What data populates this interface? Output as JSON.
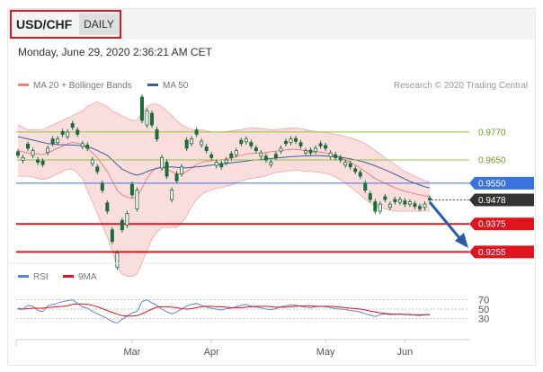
{
  "header": {
    "pair": "USD/CHF",
    "period": "DAILY"
  },
  "timestamp": "Monday, June 29, 2020 2:36:21 AM CET",
  "legend": {
    "bollinger": {
      "label": "MA 20 + Bollinger Bands",
      "color": "#f08080"
    },
    "ma50": {
      "label": "MA 50",
      "color": "#3a5da0"
    }
  },
  "copyright": "Research © 2020 Trading Central",
  "rsi_legend": {
    "rsi": {
      "label": "RSI",
      "color": "#5b86d6"
    },
    "ma9": {
      "label": "9MA",
      "color": "#e0141e"
    }
  },
  "colors": {
    "candle": "#1f6b3a",
    "resistance": "#8cc63f",
    "support": "#e0141e",
    "pivot": "#3a72e0",
    "current": "#333333",
    "forecast_arrow": "#2a5ca8"
  },
  "chart_data": {
    "type": "candlestick",
    "title": "USD/CHF DAILY",
    "x_tick_labels": [
      "Mar",
      "Apr",
      "May",
      "Jun"
    ],
    "price_range": [
      0.921,
      0.992
    ],
    "levels": [
      {
        "value": 0.977,
        "label": "0.9770",
        "kind": "resistance"
      },
      {
        "value": 0.965,
        "label": "0.9650",
        "kind": "resistance"
      },
      {
        "value": 0.955,
        "label": "0.9550",
        "kind": "pivot"
      },
      {
        "value": 0.9478,
        "label": "0.9478",
        "kind": "current"
      },
      {
        "value": 0.9375,
        "label": "0.9375",
        "kind": "support"
      },
      {
        "value": 0.9255,
        "label": "0.9255",
        "kind": "support"
      }
    ],
    "close": [
      0.967,
      0.966,
      0.97,
      0.969,
      0.964,
      0.963,
      0.97,
      0.972,
      0.974,
      0.976,
      0.977,
      0.979,
      0.976,
      0.972,
      0.97,
      0.965,
      0.96,
      0.952,
      0.943,
      0.93,
      0.925,
      0.935,
      0.942,
      0.95,
      0.952,
      0.982,
      0.986,
      0.98,
      0.974,
      0.966,
      0.958,
      0.952,
      0.956,
      0.962,
      0.97,
      0.974,
      0.976,
      0.973,
      0.969,
      0.966,
      0.964,
      0.962,
      0.965,
      0.966,
      0.969,
      0.972,
      0.974,
      0.971,
      0.969,
      0.968,
      0.965,
      0.964,
      0.966,
      0.97,
      0.972,
      0.974,
      0.973,
      0.971,
      0.969,
      0.968,
      0.97,
      0.971,
      0.97,
      0.968,
      0.966,
      0.965,
      0.964,
      0.962,
      0.96,
      0.958,
      0.952,
      0.948,
      0.943,
      0.946,
      0.948,
      0.946,
      0.947,
      0.948,
      0.946,
      0.947,
      0.945,
      0.944,
      0.946,
      0.9478
    ],
    "open_offsets": [
      0.0015,
      -0.0012,
      0.0018,
      -0.002,
      0.001,
      0.0015,
      -0.0018,
      0.002,
      -0.0015,
      0.0012,
      -0.002,
      0.0016,
      0.0018,
      -0.0012,
      0.0014,
      -0.0016,
      0.002,
      0.003,
      0.0035,
      0.005,
      -0.006,
      0.004,
      -0.005,
      0.0045,
      -0.008,
      0.01,
      -0.006,
      0.005,
      0.004,
      -0.0045,
      0.006,
      -0.004,
      0.003,
      -0.003,
      0.0035,
      -0.002,
      0.0018,
      -0.0015,
      0.0016,
      0.0012,
      -0.0014,
      0.0015,
      -0.0012,
      0.0016,
      -0.0018,
      0.0014,
      -0.0012,
      0.0015,
      0.0012,
      -0.0014,
      0.0016,
      -0.001,
      0.0014,
      -0.0012,
      0.001,
      -0.0015,
      0.0012,
      0.0014,
      -0.001,
      0.0012,
      -0.0014,
      0.001,
      0.0012,
      -0.0016,
      0.0012,
      0.001,
      -0.0012,
      0.0014,
      0.0012,
      0.0016,
      0.003,
      0.0025,
      0.004,
      -0.003,
      0.0012,
      -0.0014,
      0.001,
      -0.0012,
      0.0014,
      -0.001,
      0.0012,
      0.001,
      -0.0014,
      0.0008
    ],
    "ma20": [
      0.969,
      0.9685,
      0.968,
      0.9678,
      0.9675,
      0.9673,
      0.968,
      0.969,
      0.97,
      0.971,
      0.972,
      0.9725,
      0.9722,
      0.9715,
      0.97,
      0.968,
      0.966,
      0.963,
      0.96,
      0.956,
      0.952,
      0.95,
      0.949,
      0.9485,
      0.949,
      0.953,
      0.957,
      0.96,
      0.9615,
      0.962,
      0.961,
      0.96,
      0.959,
      0.959,
      0.96,
      0.9615,
      0.963,
      0.964,
      0.9645,
      0.9645,
      0.965,
      0.965,
      0.9655,
      0.9658,
      0.9665,
      0.967,
      0.9675,
      0.9678,
      0.968,
      0.968,
      0.9682,
      0.9685,
      0.9688,
      0.969,
      0.9693,
      0.9695,
      0.9696,
      0.9694,
      0.969,
      0.9688,
      0.9685,
      0.9683,
      0.968,
      0.9675,
      0.9668,
      0.966,
      0.965,
      0.964,
      0.9628,
      0.9615,
      0.96,
      0.9585,
      0.957,
      0.956,
      0.955,
      0.954,
      0.953,
      0.9522,
      0.9515,
      0.951,
      0.9505,
      0.95,
      0.9496,
      0.9492
    ],
    "bb_upper": [
      0.98,
      0.979,
      0.978,
      0.978,
      0.978,
      0.978,
      0.979,
      0.98,
      0.981,
      0.982,
      0.983,
      0.984,
      0.985,
      0.986,
      0.988,
      0.989,
      0.99,
      0.989,
      0.988,
      0.986,
      0.985,
      0.984,
      0.983,
      0.982,
      0.982,
      0.985,
      0.988,
      0.989,
      0.989,
      0.988,
      0.986,
      0.984,
      0.982,
      0.98,
      0.979,
      0.978,
      0.978,
      0.978,
      0.9775,
      0.977,
      0.977,
      0.977,
      0.9772,
      0.9774,
      0.9778,
      0.978,
      0.9784,
      0.9786,
      0.9786,
      0.9784,
      0.9782,
      0.978,
      0.978,
      0.9782,
      0.9784,
      0.9786,
      0.9786,
      0.9784,
      0.978,
      0.9776,
      0.9772,
      0.977,
      0.9768,
      0.9764,
      0.976,
      0.9755,
      0.975,
      0.9745,
      0.9738,
      0.973,
      0.972,
      0.9705,
      0.969,
      0.9675,
      0.966,
      0.9645,
      0.963,
      0.9615,
      0.96,
      0.959,
      0.958,
      0.957,
      0.956,
      0.9555
    ],
    "bb_lower": [
      0.958,
      0.958,
      0.958,
      0.9576,
      0.957,
      0.9566,
      0.957,
      0.958,
      0.959,
      0.96,
      0.961,
      0.961,
      0.9594,
      0.957,
      0.952,
      0.947,
      0.942,
      0.937,
      0.932,
      0.926,
      0.919,
      0.916,
      0.915,
      0.915,
      0.916,
      0.921,
      0.926,
      0.931,
      0.934,
      0.936,
      0.936,
      0.936,
      0.936,
      0.938,
      0.941,
      0.945,
      0.948,
      0.95,
      0.9515,
      0.952,
      0.953,
      0.953,
      0.9538,
      0.9542,
      0.9552,
      0.956,
      0.9566,
      0.957,
      0.9574,
      0.9576,
      0.9582,
      0.959,
      0.9596,
      0.9598,
      0.9602,
      0.9604,
      0.9606,
      0.9604,
      0.96,
      0.96,
      0.9598,
      0.9596,
      0.9592,
      0.9586,
      0.9576,
      0.9565,
      0.955,
      0.9535,
      0.9518,
      0.95,
      0.948,
      0.9465,
      0.945,
      0.9445,
      0.944,
      0.9435,
      0.943,
      0.9429,
      0.943,
      0.943,
      0.943,
      0.943,
      0.9432,
      0.9429
    ],
    "ma50": [
      0.975,
      0.9745,
      0.974,
      0.9735,
      0.973,
      0.9725,
      0.972,
      0.9718,
      0.9716,
      0.9715,
      0.9714,
      0.9714,
      0.9712,
      0.971,
      0.9705,
      0.97,
      0.969,
      0.968,
      0.967,
      0.965,
      0.963,
      0.961,
      0.96,
      0.959,
      0.9585,
      0.959,
      0.96,
      0.9608,
      0.9614,
      0.9618,
      0.962,
      0.962,
      0.9618,
      0.9616,
      0.9616,
      0.9618,
      0.962,
      0.9622,
      0.9625,
      0.9628,
      0.963,
      0.9632,
      0.9635,
      0.9638,
      0.964,
      0.9642,
      0.9645,
      0.9648,
      0.965,
      0.9652,
      0.9654,
      0.9656,
      0.9658,
      0.966,
      0.9662,
      0.9664,
      0.9665,
      0.9666,
      0.9667,
      0.9668,
      0.9668,
      0.9668,
      0.9667,
      0.9666,
      0.9664,
      0.9662,
      0.9658,
      0.9655,
      0.965,
      0.9645,
      0.964,
      0.9632,
      0.9625,
      0.9616,
      0.9608,
      0.9598,
      0.9588,
      0.9578,
      0.9568,
      0.9558,
      0.955,
      0.9542,
      0.9535,
      0.953
    ],
    "rsi": {
      "y_tick_labels": [
        "70",
        "50",
        "30"
      ],
      "y_range": [
        0,
        100
      ],
      "values": [
        52,
        50,
        58,
        56,
        47,
        45,
        57,
        60,
        63,
        66,
        68,
        70,
        62,
        55,
        52,
        45,
        40,
        35,
        30,
        23,
        20,
        28,
        35,
        42,
        45,
        66,
        70,
        63,
        58,
        50,
        44,
        40,
        44,
        50,
        57,
        60,
        62,
        58,
        54,
        52,
        50,
        48,
        51,
        52,
        55,
        58,
        60,
        56,
        54,
        53,
        50,
        49,
        51,
        55,
        57,
        59,
        58,
        56,
        54,
        53,
        55,
        56,
        55,
        53,
        51,
        50,
        49,
        47,
        46,
        44,
        40,
        37,
        34,
        38,
        40,
        38,
        39,
        40,
        38,
        39,
        37,
        36,
        38,
        39
      ],
      "ma9": [
        50,
        50,
        51,
        52,
        52,
        52,
        53,
        54,
        55,
        56,
        57,
        60,
        61,
        61,
        60,
        58,
        55,
        51,
        47,
        43,
        39,
        36,
        35,
        35,
        36,
        40,
        45,
        50,
        54,
        55,
        55,
        54,
        53,
        51,
        50,
        51,
        53,
        55,
        56,
        56,
        55,
        55,
        54,
        53,
        53,
        53,
        54,
        55,
        56,
        56,
        56,
        55,
        54,
        54,
        54,
        55,
        56,
        57,
        57,
        57,
        56,
        56,
        56,
        56,
        55,
        54,
        53,
        52,
        51,
        50,
        48,
        46,
        44,
        42,
        41,
        40,
        39,
        39,
        39,
        38,
        38,
        38,
        38,
        38
      ]
    }
  }
}
